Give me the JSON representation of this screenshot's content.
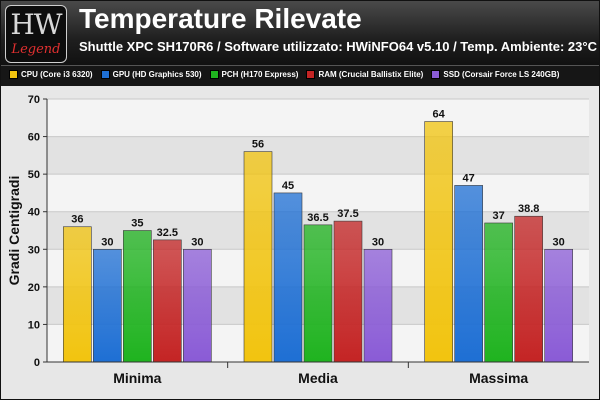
{
  "header": {
    "logo_text": "HW",
    "logo_subtext": "Legend",
    "title": "Temperature Rilevate",
    "subtitle": "Shuttle XPC SH170R6 / Software utilizzato: HWiNFO64 v5.10 / Temp. Ambiente: 23°C"
  },
  "chart_data": {
    "type": "bar",
    "title": "Temperature Rilevate",
    "subtitle": "Shuttle XPC SH170R6 / Software utilizzato: HWiNFO64 v5.10 / Temp. Ambiente: 23°C",
    "xlabel": "",
    "ylabel": "Gradi Centigradi",
    "ylim": [
      0,
      70
    ],
    "yticks": [
      0,
      10,
      20,
      30,
      40,
      50,
      60,
      70
    ],
    "grid": true,
    "legend_position": "top",
    "categories": [
      "Minima",
      "Media",
      "Massima"
    ],
    "series": [
      {
        "name": "CPU (Core i3 6320)",
        "color": "#f2c40f",
        "values": [
          36,
          56,
          64
        ]
      },
      {
        "name": "GPU (HD Graphics 530)",
        "color": "#1e6fd4",
        "values": [
          30,
          45,
          47
        ]
      },
      {
        "name": "PCH (H170 Express)",
        "color": "#1fb31f",
        "values": [
          35,
          36.5,
          37
        ]
      },
      {
        "name": "RAM (Crucial Ballistix Elite)",
        "color": "#c42424",
        "values": [
          32.5,
          37.5,
          38.8
        ]
      },
      {
        "name": "SSD (Corsair Force LS 240GB)",
        "color": "#8a5bd6",
        "values": [
          30,
          30,
          30
        ]
      }
    ]
  }
}
